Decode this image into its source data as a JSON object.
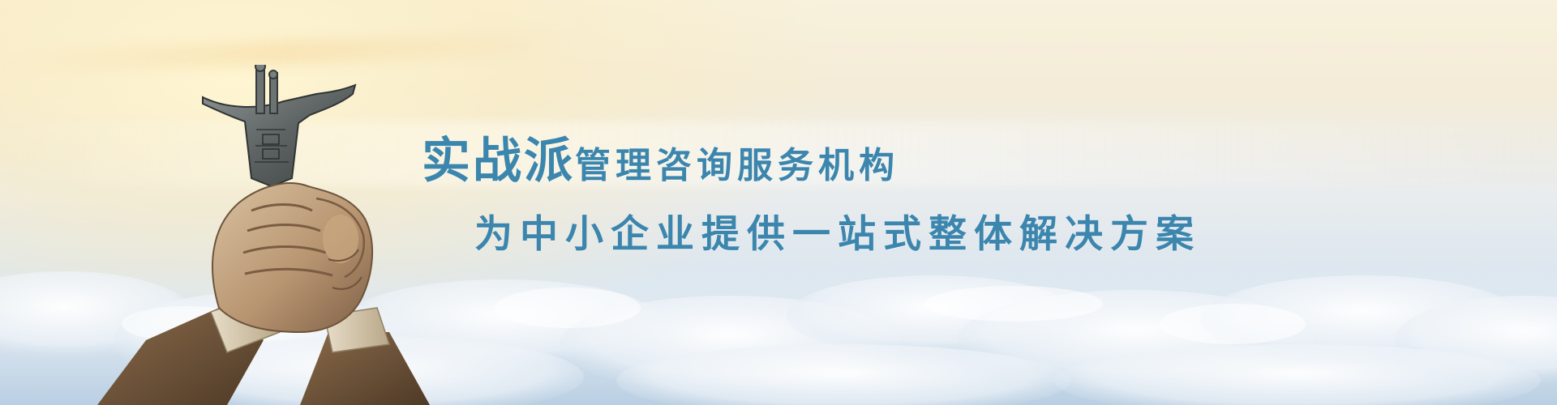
{
  "banner": {
    "headline_lead": "实战派",
    "headline_rest": "管理咨询服务机构",
    "subline": "为中小企业提供一站式整体解决方案"
  },
  "colors": {
    "text": "#3c86ae",
    "sky_top": "#f8f1dc",
    "sky_bottom": "#c9dbec"
  },
  "icons": {
    "illustration": "clasped-hands-holding-bronze-vessel"
  }
}
